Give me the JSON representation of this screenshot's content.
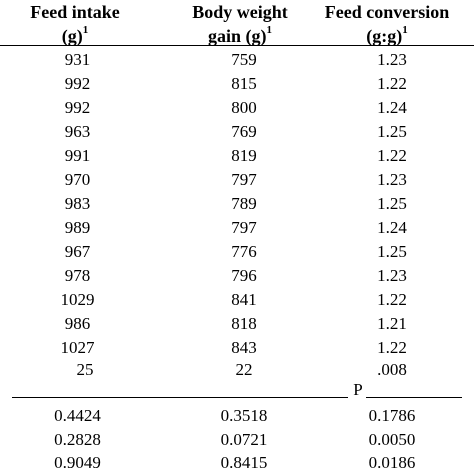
{
  "header": {
    "col1_line1": "Feed intake",
    "col1_line2": "(g)",
    "col2_line1": "Body weight",
    "col2_line2": "gain (g)",
    "col3_line1": "Feed conversion",
    "col3_line2": "(g:g)",
    "superscript": "1"
  },
  "rows": [
    [
      "931",
      "759",
      "1.23"
    ],
    [
      "992",
      "815",
      "1.22"
    ],
    [
      "992",
      "800",
      "1.24"
    ],
    [
      "963",
      "769",
      "1.25"
    ],
    [
      "991",
      "819",
      "1.22"
    ],
    [
      "970",
      "797",
      "1.23"
    ],
    [
      "983",
      "789",
      "1.25"
    ],
    [
      "989",
      "797",
      "1.24"
    ],
    [
      "967",
      "776",
      "1.25"
    ],
    [
      "978",
      "796",
      "1.23"
    ],
    [
      "1029",
      "841",
      "1.22"
    ],
    [
      "986",
      "818",
      "1.21"
    ],
    [
      "1027",
      "843",
      "1.22"
    ]
  ],
  "sem_row": [
    "25",
    "22",
    ".008"
  ],
  "p_label": "P",
  "p_rows": [
    [
      "0.4424",
      "0.3518",
      "0.1786"
    ],
    [
      "0.2828",
      "0.0721",
      "0.0050"
    ],
    [
      "0.9049",
      "0.8415",
      "0.0186"
    ]
  ]
}
